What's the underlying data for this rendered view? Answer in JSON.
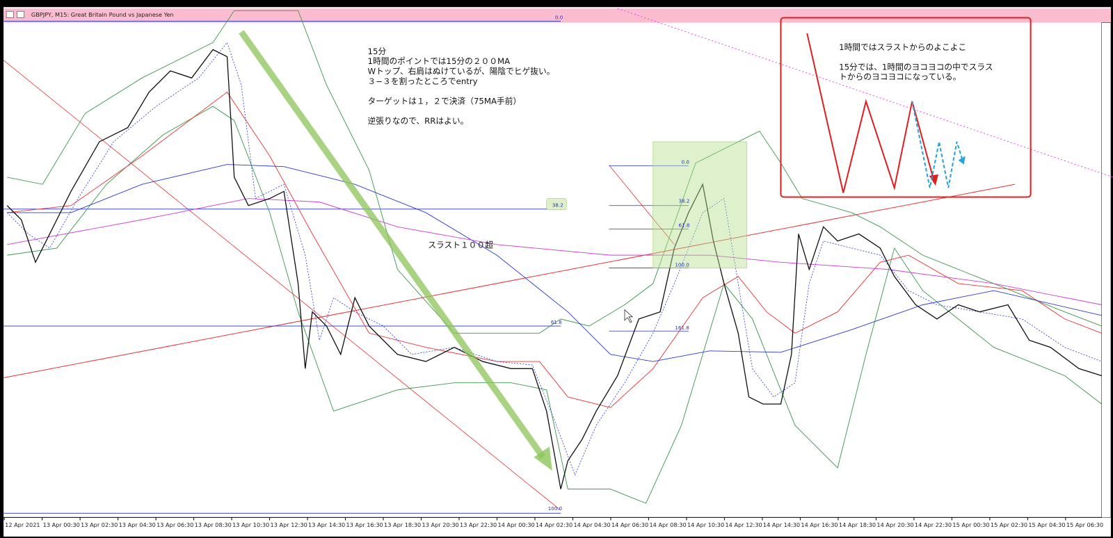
{
  "header": {
    "title": "GBPJPY, M15:  Great Britain Pound vs Japanese Yen"
  },
  "x_axis": {
    "labels": [
      "12 Apr 2021",
      "13 Apr 00:30",
      "13 Apr 02:30",
      "13 Apr 04:30",
      "13 Apr 06:30",
      "13 Apr 08:30",
      "13 Apr 10:30",
      "13 Apr 12:30",
      "13 Apr 14:30",
      "13 Apr 16:30",
      "13 Apr 18:30",
      "13 Apr 20:30",
      "13 Apr 22:30",
      "14 Apr 00:30",
      "14 Apr 02:30",
      "14 Apr 04:30",
      "14 Apr 06:30",
      "14 Apr 08:30",
      "14 Apr 10:30",
      "14 Apr 12:30",
      "14 Apr 14:30",
      "14 Apr 16:30",
      "14 Apr 18:30",
      "14 Apr 20:30",
      "14 Apr 22:30",
      "15 Apr 00:30",
      "15 Apr 02:30",
      "15 Apr 04:30",
      "15 Apr 06:30"
    ]
  },
  "fib_large": {
    "levels": [
      "0.0",
      "38.2",
      "61.8",
      "100.0"
    ]
  },
  "fib_small": {
    "levels": [
      "0.0",
      "38.2",
      "61.8",
      "100.0",
      "161.8"
    ]
  },
  "notes": {
    "main": [
      "15分",
      "1時間のポイントでは15分の２００MA",
      "Wトップ、右肩はぬけているが、陽陰でヒゲ抜い。",
      "３−３を割ったところでentry",
      "ターゲットは１，２で決済（75MA手前）",
      "逆張りなので、RRはよい。"
    ],
    "thrust": "スラスト１００超",
    "box": [
      "1時間ではスラストからのよこよこ",
      "15分では、1時間のヨコヨコの中でスラス",
      "トからのヨコヨコになっている。"
    ]
  }
}
